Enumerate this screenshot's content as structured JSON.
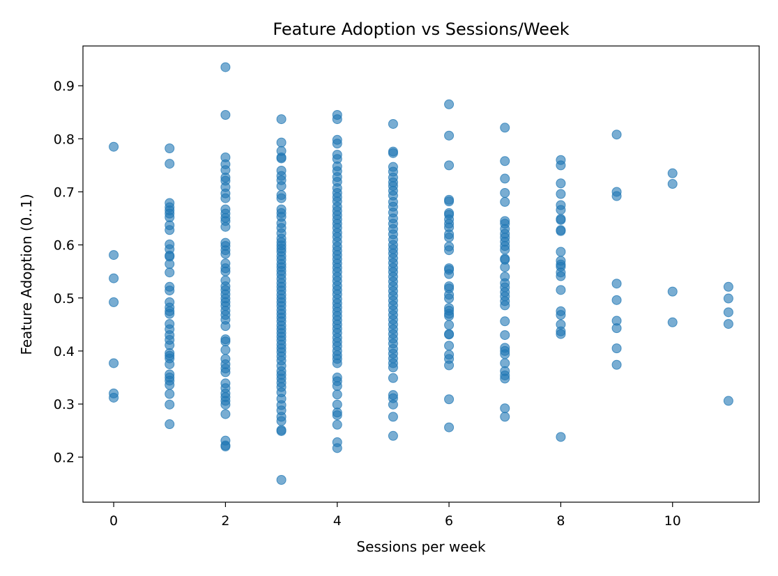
{
  "chart_data": {
    "type": "scatter",
    "title": "Feature Adoption vs Sessions/Week",
    "xlabel": "Sessions per week",
    "ylabel": "Feature Adoption (0..1)",
    "xlim": [
      -0.55,
      11.55
    ],
    "ylim": [
      0.115,
      0.975
    ],
    "xticks": [
      0,
      2,
      4,
      6,
      8,
      10
    ],
    "yticks": [
      0.2,
      0.3,
      0.4,
      0.5,
      0.6,
      0.7,
      0.8,
      0.9
    ],
    "grid": false,
    "marker_color": "#1f77b4",
    "marker_alpha": 0.6,
    "points": [
      {
        "x": 0,
        "ys": [
          0.785,
          0.581,
          0.537,
          0.492,
          0.377,
          0.32,
          0.312
        ]
      },
      {
        "x": 1,
        "ys": [
          0.782,
          0.753,
          0.679,
          0.671,
          0.665,
          0.659,
          0.652,
          0.637,
          0.628,
          0.601,
          0.592,
          0.58,
          0.578,
          0.564,
          0.548,
          0.521,
          0.514,
          0.492,
          0.482,
          0.475,
          0.47,
          0.451,
          0.441,
          0.43,
          0.421,
          0.411,
          0.396,
          0.391,
          0.386,
          0.375,
          0.356,
          0.35,
          0.344,
          0.336,
          0.319,
          0.299,
          0.262
        ]
      },
      {
        "x": 2,
        "ys": [
          0.935,
          0.845,
          0.765,
          0.752,
          0.741,
          0.727,
          0.721,
          0.709,
          0.697,
          0.688,
          0.667,
          0.659,
          0.651,
          0.645,
          0.634,
          0.604,
          0.598,
          0.59,
          0.583,
          0.565,
          0.556,
          0.55,
          0.533,
          0.522,
          0.515,
          0.507,
          0.499,
          0.492,
          0.485,
          0.476,
          0.468,
          0.459,
          0.447,
          0.422,
          0.418,
          0.402,
          0.385,
          0.375,
          0.367,
          0.36,
          0.339,
          0.33,
          0.32,
          0.313,
          0.306,
          0.299,
          0.281,
          0.231,
          0.222,
          0.22
        ]
      },
      {
        "x": 3,
        "ys": [
          0.837,
          0.793,
          0.777,
          0.765,
          0.763,
          0.74,
          0.73,
          0.722,
          0.711,
          0.694,
          0.688,
          0.667,
          0.66,
          0.653,
          0.641,
          0.632,
          0.622,
          0.612,
          0.605,
          0.599,
          0.593,
          0.587,
          0.579,
          0.572,
          0.564,
          0.558,
          0.551,
          0.544,
          0.536,
          0.528,
          0.521,
          0.514,
          0.506,
          0.499,
          0.492,
          0.485,
          0.477,
          0.47,
          0.463,
          0.456,
          0.448,
          0.441,
          0.434,
          0.427,
          0.42,
          0.412,
          0.405,
          0.398,
          0.39,
          0.382,
          0.372,
          0.362,
          0.355,
          0.348,
          0.34,
          0.332,
          0.322,
          0.31,
          0.298,
          0.288,
          0.276,
          0.268,
          0.251,
          0.249,
          0.157
        ]
      },
      {
        "x": 4,
        "ys": [
          0.845,
          0.837,
          0.798,
          0.791,
          0.77,
          0.762,
          0.748,
          0.739,
          0.728,
          0.719,
          0.707,
          0.698,
          0.69,
          0.682,
          0.672,
          0.664,
          0.656,
          0.648,
          0.64,
          0.632,
          0.623,
          0.615,
          0.606,
          0.597,
          0.589,
          0.581,
          0.573,
          0.565,
          0.557,
          0.549,
          0.54,
          0.532,
          0.523,
          0.515,
          0.507,
          0.498,
          0.49,
          0.482,
          0.474,
          0.466,
          0.458,
          0.45,
          0.442,
          0.434,
          0.425,
          0.417,
          0.409,
          0.4,
          0.392,
          0.385,
          0.377,
          0.35,
          0.343,
          0.334,
          0.318,
          0.299,
          0.284,
          0.279,
          0.261,
          0.228,
          0.217
        ]
      },
      {
        "x": 5,
        "ys": [
          0.828,
          0.776,
          0.773,
          0.747,
          0.738,
          0.727,
          0.718,
          0.711,
          0.702,
          0.693,
          0.681,
          0.672,
          0.661,
          0.65,
          0.64,
          0.63,
          0.62,
          0.61,
          0.6,
          0.592,
          0.584,
          0.575,
          0.566,
          0.557,
          0.549,
          0.54,
          0.531,
          0.522,
          0.513,
          0.504,
          0.495,
          0.486,
          0.477,
          0.468,
          0.459,
          0.45,
          0.441,
          0.432,
          0.423,
          0.414,
          0.404,
          0.395,
          0.386,
          0.377,
          0.369,
          0.349,
          0.317,
          0.311,
          0.299,
          0.276,
          0.24
        ]
      },
      {
        "x": 6,
        "ys": [
          0.865,
          0.806,
          0.75,
          0.685,
          0.682,
          0.66,
          0.657,
          0.648,
          0.64,
          0.633,
          0.62,
          0.614,
          0.597,
          0.59,
          0.556,
          0.553,
          0.545,
          0.522,
          0.518,
          0.506,
          0.499,
          0.481,
          0.476,
          0.47,
          0.466,
          0.449,
          0.432,
          0.431,
          0.41,
          0.393,
          0.385,
          0.373,
          0.309,
          0.256
        ]
      },
      {
        "x": 7,
        "ys": [
          0.821,
          0.758,
          0.725,
          0.698,
          0.681,
          0.645,
          0.64,
          0.63,
          0.621,
          0.614,
          0.606,
          0.598,
          0.591,
          0.574,
          0.572,
          0.558,
          0.54,
          0.528,
          0.52,
          0.511,
          0.503,
          0.494,
          0.486,
          0.456,
          0.43,
          0.406,
          0.4,
          0.394,
          0.377,
          0.362,
          0.354,
          0.348,
          0.292,
          0.276
        ]
      },
      {
        "x": 8,
        "ys": [
          0.76,
          0.75,
          0.716,
          0.696,
          0.675,
          0.666,
          0.649,
          0.647,
          0.628,
          0.626,
          0.587,
          0.57,
          0.563,
          0.559,
          0.548,
          0.541,
          0.515,
          0.475,
          0.468,
          0.45,
          0.437,
          0.432,
          0.238
        ]
      },
      {
        "x": 9,
        "ys": [
          0.808,
          0.7,
          0.692,
          0.527,
          0.496,
          0.457,
          0.443,
          0.405,
          0.374
        ]
      },
      {
        "x": 10,
        "ys": [
          0.735,
          0.715,
          0.512,
          0.454
        ]
      },
      {
        "x": 11,
        "ys": [
          0.521,
          0.499,
          0.473,
          0.451,
          0.306
        ]
      }
    ]
  }
}
